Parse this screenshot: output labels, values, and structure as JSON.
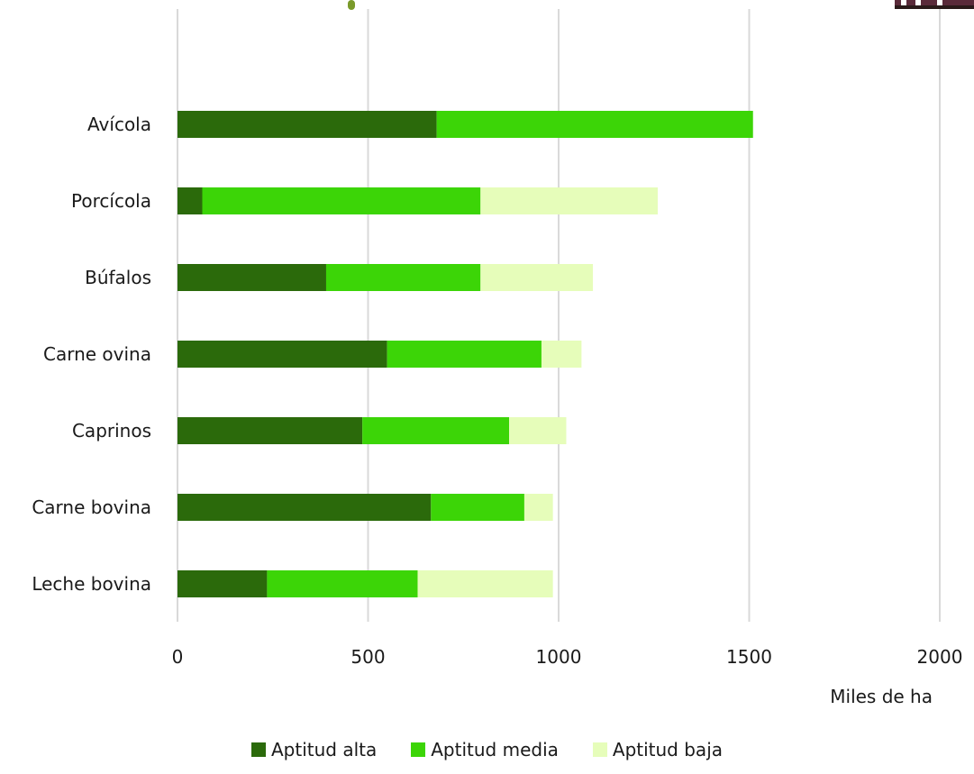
{
  "chart_data": {
    "type": "bar",
    "orientation": "horizontal",
    "stacked": true,
    "categories": [
      "Avícola",
      "Porcícola",
      "Búfalos",
      "Carne ovina",
      "Caprinos",
      "Carne bovina",
      "Leche bovina"
    ],
    "series": [
      {
        "name": "Aptitud alta",
        "color": "#2b6a0b",
        "values": [
          680,
          65,
          390,
          550,
          485,
          665,
          235
        ]
      },
      {
        "name": "Aptitud media",
        "color": "#3cd507",
        "values": [
          830,
          730,
          405,
          405,
          385,
          245,
          395
        ]
      },
      {
        "name": "Aptitud baja",
        "color": "#e6fdba",
        "values": [
          0,
          465,
          295,
          105,
          150,
          75,
          355
        ]
      }
    ],
    "xlabel": "Miles de ha",
    "xlim": [
      0,
      2000
    ],
    "xticks": [
      0,
      500,
      1000,
      1500,
      2000
    ],
    "grid": true,
    "legend_position": "bottom"
  }
}
